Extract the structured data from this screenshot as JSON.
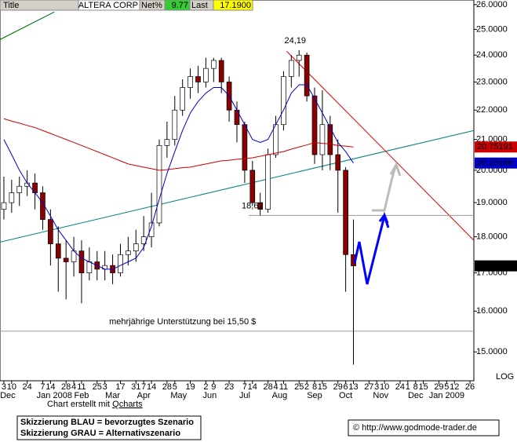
{
  "chart_data": {
    "type": "candlestick",
    "header": {
      "title_label": "Title",
      "symbol": "ALTERA CORP",
      "net_label": "Net%",
      "net": "9.77",
      "last_label": "Last",
      "last": "17.1900"
    },
    "categories": [
      null,
      null,
      null,
      null,
      null,
      null,
      null,
      null,
      null,
      null,
      null,
      null,
      null,
      null,
      null,
      null,
      null,
      null,
      null,
      null,
      null,
      null,
      null,
      null,
      null,
      null,
      null,
      null,
      null,
      null,
      null,
      null,
      null,
      null,
      null,
      null,
      null,
      null,
      null,
      null,
      null,
      null,
      null,
      null,
      null,
      null
    ],
    "open": [
      18.8,
      19.0,
      19.3,
      19.5,
      19.6,
      19.3,
      18.5,
      17.8,
      17.4,
      17.3,
      17.6,
      17.0,
      17.3,
      17.1,
      17.2,
      17.0,
      17.5,
      17.6,
      17.8,
      18.0,
      18.4,
      20.8,
      21.0,
      22.0,
      22.8,
      23.2,
      23.0,
      23.5,
      23.8,
      23.0,
      22.0,
      21.5,
      20.0,
      19.0,
      18.8,
      20.5,
      21.5,
      23.2,
      23.8,
      24.0,
      22.5,
      20.5,
      21.5,
      20.5,
      20.0,
      17.5
    ],
    "high": [
      19.8,
      19.7,
      19.8,
      20.0,
      19.9,
      19.5,
      18.8,
      18.3,
      17.9,
      18.0,
      17.9,
      17.7,
      17.6,
      17.6,
      17.5,
      17.8,
      18.0,
      18.2,
      18.6,
      19.3,
      21.0,
      21.6,
      22.5,
      23.1,
      23.5,
      23.6,
      23.9,
      23.9,
      23.9,
      23.2,
      22.3,
      21.6,
      20.3,
      19.3,
      20.7,
      21.8,
      23.4,
      24.0,
      24.19,
      24.1,
      22.8,
      22.7,
      21.8,
      21.0,
      20.1,
      18.5
    ],
    "low": [
      18.5,
      18.7,
      18.9,
      19.2,
      18.8,
      18.2,
      17.2,
      16.5,
      16.3,
      16.9,
      16.2,
      16.8,
      16.8,
      16.8,
      16.7,
      16.9,
      17.2,
      17.3,
      17.6,
      17.7,
      18.3,
      20.4,
      20.8,
      21.8,
      22.4,
      22.6,
      22.8,
      23.0,
      22.6,
      21.6,
      20.9,
      19.6,
      18.9,
      18.62,
      18.7,
      20.4,
      21.3,
      22.8,
      23.2,
      22.3,
      20.2,
      20.0,
      20.0,
      18.7,
      16.5,
      14.7
    ],
    "close": [
      19.0,
      19.3,
      19.5,
      19.6,
      19.3,
      18.5,
      17.8,
      17.4,
      17.3,
      17.6,
      17.0,
      17.3,
      17.1,
      17.2,
      17.0,
      17.5,
      17.6,
      17.8,
      18.0,
      18.4,
      20.8,
      21.0,
      22.0,
      22.8,
      23.2,
      23.0,
      23.5,
      23.8,
      23.0,
      22.0,
      21.5,
      20.0,
      19.0,
      18.8,
      20.5,
      21.5,
      23.2,
      23.8,
      24.0,
      22.5,
      20.5,
      21.5,
      20.5,
      20.0,
      17.5,
      17.19
    ],
    "candle_color": "#8b0000",
    "series": [
      {
        "name": "MA200",
        "color": "#cc0000",
        "last_value_label": "20.75191",
        "values": [
          21.7,
          21.62,
          21.55,
          21.47,
          21.4,
          21.3,
          21.2,
          21.1,
          21.0,
          20.9,
          20.8,
          20.7,
          20.6,
          20.5,
          20.4,
          20.3,
          20.2,
          20.15,
          20.1,
          20.05,
          20.0,
          20.02,
          20.05,
          20.08,
          20.1,
          20.15,
          20.2,
          20.25,
          20.3,
          20.32,
          20.35,
          20.37,
          20.4,
          20.45,
          20.5,
          20.55,
          20.6,
          20.68,
          20.75,
          20.82,
          20.9,
          20.87,
          20.85,
          20.8,
          20.78,
          20.75
        ]
      },
      {
        "name": "MA20",
        "color": "#0000cc",
        "last_value_label": "20.23186",
        "values": [
          21.0,
          20.5,
          20.0,
          19.6,
          19.3,
          19.0,
          18.6,
          18.2,
          17.9,
          17.6,
          17.4,
          17.3,
          17.2,
          17.1,
          17.1,
          17.2,
          17.3,
          17.4,
          17.7,
          18.3,
          19.1,
          19.9,
          20.6,
          21.3,
          21.9,
          22.3,
          22.6,
          22.8,
          22.8,
          22.5,
          22.0,
          21.5,
          21.0,
          20.9,
          21.0,
          21.5,
          22.0,
          22.6,
          22.9,
          22.9,
          22.4,
          21.9,
          21.4,
          20.9,
          20.6,
          20.23
        ]
      }
    ],
    "trendlines": [
      {
        "color": "#006600",
        "x": [
          -0.5,
          6.5
        ],
        "y": [
          24.6,
          25.7
        ]
      },
      {
        "color": "#008080",
        "x": [
          -0.5,
          60.5
        ],
        "y": [
          17.85,
          21.3
        ]
      },
      {
        "color": "#dd0000",
        "x": [
          36.4,
          60.5
        ],
        "y": [
          24.15,
          17.9
        ]
      },
      {
        "color": "#999999",
        "x": [
          31.5,
          60.5
        ],
        "y": [
          18.62,
          18.62
        ]
      },
      {
        "color": "#999999",
        "x": [
          -0.5,
          60.5
        ],
        "y": [
          15.5,
          15.5
        ]
      }
    ],
    "annotations": [
      {
        "text": "24,19",
        "x": 37.5,
        "y": 24.19
      },
      {
        "text": "18,62",
        "x": 32,
        "y": 18.62
      },
      {
        "text": "mehrjährige Unterstützung bei 15,50 $",
        "x": 23,
        "y": 15.5
      }
    ],
    "ylim": [
      14.33,
      26.19
    ],
    "log_scale": true,
    "yticks": [
      {
        "value": 15,
        "label": "15.0000"
      },
      {
        "value": 16,
        "label": "16.0000"
      },
      {
        "value": 17,
        "label": "17.0000"
      },
      {
        "value": 18,
        "label": "18.0000"
      },
      {
        "value": 19,
        "label": "19.0000"
      },
      {
        "value": 20,
        "label": "20.0000"
      },
      {
        "value": 21,
        "label": "21.0000"
      },
      {
        "value": 22,
        "label": "22.0000"
      },
      {
        "value": 23,
        "label": "23.0000"
      },
      {
        "value": 24,
        "label": "24.0000"
      },
      {
        "value": 25,
        "label": "25.0000"
      },
      {
        "value": 26,
        "label": "26.0000"
      }
    ],
    "xlim": [
      -0.5,
      60.5
    ],
    "xticks": [
      {
        "value": 0,
        "label": "3"
      },
      {
        "value": 1,
        "label": "10"
      },
      {
        "value": 3,
        "label": "24"
      },
      {
        "value": 5,
        "label": "7"
      },
      {
        "value": 6,
        "label": "14"
      },
      {
        "value": 8,
        "label": "28"
      },
      {
        "value": 9,
        "label": "4"
      },
      {
        "value": 10,
        "label": "11"
      },
      {
        "value": 12,
        "label": "25"
      },
      {
        "value": 13,
        "label": "3"
      },
      {
        "value": 15,
        "label": "17"
      },
      {
        "value": 17,
        "label": "31"
      },
      {
        "value": 18,
        "label": "7"
      },
      {
        "value": 19,
        "label": "14"
      },
      {
        "value": 21,
        "label": "28"
      },
      {
        "value": 22,
        "label": "5"
      },
      {
        "value": 24,
        "label": "19"
      },
      {
        "value": 26,
        "label": "2"
      },
      {
        "value": 27,
        "label": "9"
      },
      {
        "value": 29,
        "label": "23"
      },
      {
        "value": 31,
        "label": "7"
      },
      {
        "value": 32,
        "label": "14"
      },
      {
        "value": 34,
        "label": "28"
      },
      {
        "value": 35,
        "label": "4"
      },
      {
        "value": 36,
        "label": "11"
      },
      {
        "value": 38,
        "label": "25"
      },
      {
        "value": 39,
        "label": "2"
      },
      {
        "value": 40,
        "label": "8"
      },
      {
        "value": 41,
        "label": "15"
      },
      {
        "value": 43,
        "label": "29"
      },
      {
        "value": 44,
        "label": "6"
      },
      {
        "value": 45,
        "label": "13"
      },
      {
        "value": 47,
        "label": "27"
      },
      {
        "value": 48,
        "label": "3"
      },
      {
        "value": 49,
        "label": "10"
      },
      {
        "value": 51,
        "label": "24"
      },
      {
        "value": 52,
        "label": "1"
      },
      {
        "value": 53,
        "label": "8"
      },
      {
        "value": 54,
        "label": "15"
      },
      {
        "value": 56,
        "label": "29"
      },
      {
        "value": 57,
        "label": "5"
      },
      {
        "value": 58,
        "label": "12"
      },
      {
        "value": 60,
        "label": "26"
      }
    ],
    "month_labels": [
      {
        "value": 0.5,
        "label": "Dec"
      },
      {
        "value": 6.5,
        "label": "Jan 2008"
      },
      {
        "value": 10,
        "label": "Feb"
      },
      {
        "value": 14,
        "label": "Mar"
      },
      {
        "value": 18,
        "label": "Apr"
      },
      {
        "value": 22.5,
        "label": "May"
      },
      {
        "value": 26.5,
        "label": "Jun"
      },
      {
        "value": 31,
        "label": "Jul"
      },
      {
        "value": 35.5,
        "label": "Aug"
      },
      {
        "value": 40,
        "label": "Sep"
      },
      {
        "value": 44,
        "label": "Oct"
      },
      {
        "value": 48.5,
        "label": "Nov"
      },
      {
        "value": 53,
        "label": "Dec"
      },
      {
        "value": 57,
        "label": "Jan 2009"
      }
    ],
    "scale_label": "LOG",
    "credit_prefix": "Chart erstellt mit",
    "credit_link": "Qcharts",
    "legend_lines": [
      "Skizzierung BLAU = bevorzugtes Szenario",
      "Skizzierung GRAU = Alternativszenario"
    ],
    "copyright": "© http://www.godmode-trader.de"
  }
}
